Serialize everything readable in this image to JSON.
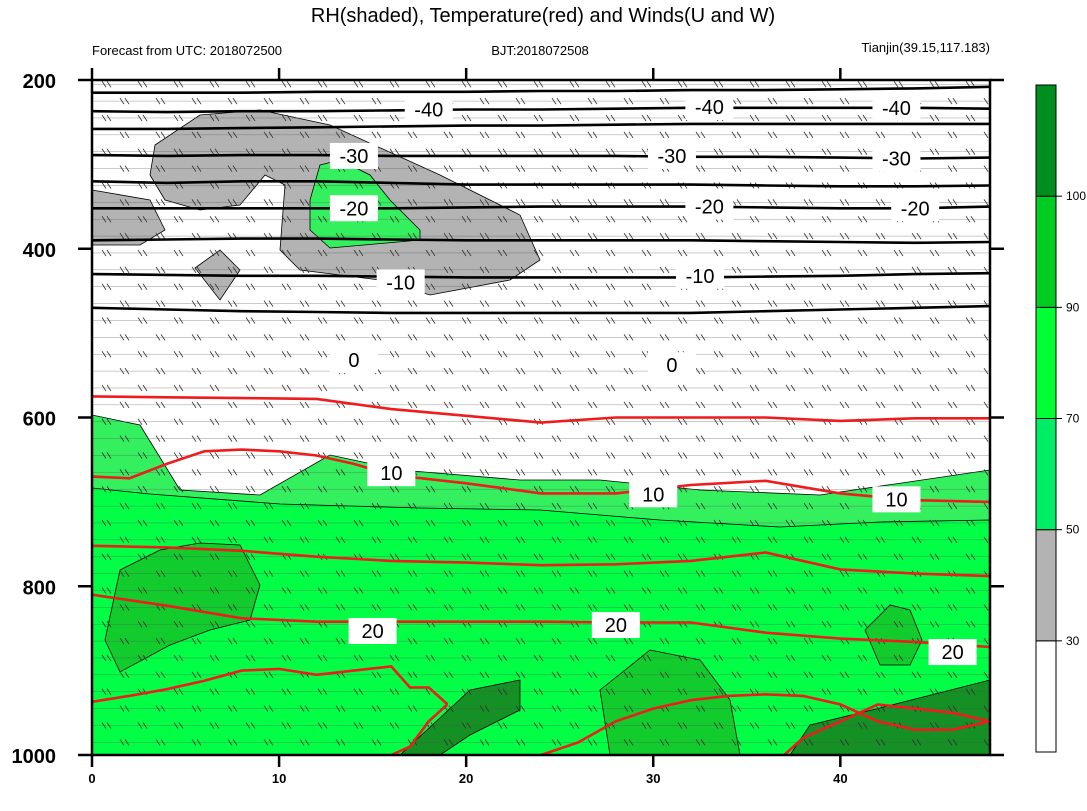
{
  "chart_data": {
    "type": "contour",
    "title": "RH(shaded), Temperature(red) and Winds(U and W)",
    "subtitle_left": "Forecast from UTC: 2018072500",
    "subtitle_center": "BJT:2018072508",
    "subtitle_right": "Tianjin(39.15,117.183)",
    "x_range": [
      0,
      48
    ],
    "x_ticks": [
      0,
      10,
      20,
      30,
      40
    ],
    "y_range": [
      1000,
      200
    ],
    "y_ticks": [
      200,
      400,
      600,
      800,
      1000
    ],
    "colorbar": {
      "levels": [
        "30",
        "50",
        "70",
        "90",
        "100"
      ],
      "colors": [
        "#ffffff",
        "#b3b3b3",
        "#00ee66",
        "#00ff33",
        "#00cc22",
        "#008f1f"
      ]
    },
    "colors": {
      "temperature": "#ee1c1c",
      "contour": "#000000",
      "rh_gray": "#b3b3b3",
      "rh_light": "#34ef5e",
      "rh_green": "#00ff45",
      "rh_mid": "#11cc2c",
      "rh_dark": "#149024"
    },
    "temperature_labels": [
      {
        "text": "-40",
        "x": 18.0,
        "p": 235
      },
      {
        "text": "-40",
        "x": 33.0,
        "p": 232
      },
      {
        "text": "-40",
        "x": 43.0,
        "p": 233
      },
      {
        "text": "-30",
        "x": 14.0,
        "p": 290
      },
      {
        "text": "-30",
        "x": 31.0,
        "p": 290
      },
      {
        "text": "-30",
        "x": 43.0,
        "p": 293
      },
      {
        "text": "-20",
        "x": 14.0,
        "p": 352
      },
      {
        "text": "-20",
        "x": 33.0,
        "p": 350
      },
      {
        "text": "-20",
        "x": 44.0,
        "p": 352
      },
      {
        "text": "-10",
        "x": 16.5,
        "p": 440
      },
      {
        "text": "-10",
        "x": 32.5,
        "p": 432
      },
      {
        "text": "0",
        "x": 14.0,
        "p": 532
      },
      {
        "text": "0",
        "x": 31.0,
        "p": 538
      },
      {
        "text": "10",
        "x": 16.0,
        "p": 666
      },
      {
        "text": "10",
        "x": 30.0,
        "p": 691
      },
      {
        "text": "10",
        "x": 43.0,
        "p": 697
      },
      {
        "text": "20",
        "x": 15.0,
        "p": 853
      },
      {
        "text": "20",
        "x": 28.0,
        "p": 846
      },
      {
        "text": "20",
        "x": 46.0,
        "p": 878
      }
    ],
    "temperature_lines": [
      {
        "x": [
          0,
          4,
          8,
          12,
          16,
          20,
          24,
          28,
          32,
          36,
          40,
          44,
          48
        ],
        "p": [
          215,
          215,
          215,
          214,
          214,
          214,
          213,
          213,
          212,
          212,
          211,
          210,
          208
        ]
      },
      {
        "x": [
          0,
          4,
          8,
          12,
          16,
          20,
          24,
          28,
          32,
          36,
          40,
          44,
          48
        ],
        "p": [
          237,
          238,
          237,
          237,
          236,
          235,
          235,
          234,
          233,
          233,
          233,
          233,
          234
        ]
      },
      {
        "x": [
          0,
          4,
          8,
          12,
          16,
          20,
          24,
          28,
          32,
          36,
          40,
          44,
          48
        ],
        "p": [
          258,
          258,
          257,
          256,
          255,
          254,
          254,
          253,
          252,
          252,
          252,
          252,
          252
        ]
      },
      {
        "x": [
          0,
          4,
          8,
          12,
          16,
          20,
          24,
          28,
          32,
          36,
          40,
          44,
          48
        ],
        "p": [
          289,
          290,
          289,
          289,
          290,
          290,
          290,
          290,
          291,
          291,
          292,
          293,
          292
        ]
      },
      {
        "x": [
          0,
          4,
          8,
          12,
          16,
          20,
          24,
          28,
          32,
          36,
          40,
          44,
          48
        ],
        "p": [
          320,
          322,
          320,
          320,
          322,
          324,
          324,
          324,
          324,
          325,
          326,
          326,
          325
        ]
      },
      {
        "x": [
          0,
          4,
          8,
          12,
          16,
          20,
          24,
          28,
          32,
          36,
          40,
          44,
          48
        ],
        "p": [
          352,
          352,
          352,
          352,
          352,
          351,
          350,
          350,
          350,
          351,
          352,
          352,
          350
        ]
      },
      {
        "x": [
          0,
          4,
          8,
          12,
          16,
          20,
          24,
          28,
          32,
          36,
          40,
          44,
          48
        ],
        "p": [
          390,
          389,
          388,
          388,
          389,
          390,
          390,
          390,
          390,
          391,
          392,
          393,
          392
        ]
      },
      {
        "x": [
          0,
          4,
          8,
          12,
          16,
          20,
          24,
          28,
          32,
          36,
          40,
          44,
          48
        ],
        "p": [
          430,
          431,
          432,
          432,
          433,
          434,
          434,
          434,
          434,
          433,
          432,
          430,
          429
        ]
      },
      {
        "x": [
          0,
          4,
          8,
          12,
          16,
          20,
          24,
          28,
          32,
          36,
          40,
          44,
          48
        ],
        "p": [
          470,
          472,
          474,
          475,
          476,
          476,
          476,
          476,
          476,
          474,
          472,
          470,
          468
        ]
      }
    ],
    "temperature_red_lines": [
      {
        "x": [
          0,
          4,
          8,
          12,
          16,
          20,
          24,
          28,
          32,
          36,
          40,
          44,
          48
        ],
        "p": [
          575,
          576,
          577,
          578,
          590,
          598,
          606,
          600,
          600,
          600,
          604,
          601,
          601
        ]
      },
      {
        "x": [
          0,
          2,
          4,
          6,
          8,
          10,
          12,
          14,
          16,
          20,
          24,
          28,
          32,
          36,
          40,
          44,
          48
        ],
        "p": [
          670,
          672,
          655,
          640,
          638,
          640,
          645,
          655,
          668,
          678,
          690,
          690,
          680,
          675,
          690,
          698,
          700
        ]
      },
      {
        "x": [
          0,
          4,
          8,
          12,
          16,
          20,
          24,
          28,
          32,
          36,
          40,
          44,
          48
        ],
        "p": [
          752,
          754,
          758,
          765,
          770,
          772,
          775,
          774,
          770,
          760,
          780,
          785,
          788
        ]
      },
      {
        "x": [
          0,
          4,
          8,
          12,
          16,
          20,
          24,
          28,
          32,
          36,
          40,
          44,
          48
        ],
        "p": [
          810,
          823,
          838,
          842,
          842,
          842,
          842,
          843,
          843,
          855,
          862,
          866,
          872
        ]
      },
      {
        "x": [
          0,
          2,
          4,
          6,
          8,
          10,
          12,
          14,
          16,
          17,
          18,
          19
        ],
        "p": [
          937,
          930,
          922,
          912,
          900,
          898,
          905,
          900,
          895,
          920,
          920,
          940
        ]
      },
      {
        "x": [
          19,
          18,
          17,
          16
        ],
        "p": [
          940,
          960,
          990,
          1000
        ]
      }
    ],
    "temperature_red_loop": {
      "x": [
        24,
        26,
        28,
        30,
        32,
        34,
        36,
        38,
        40,
        41,
        42,
        44,
        46,
        48,
        46,
        44,
        42,
        40,
        38,
        37
      ],
      "p": [
        1000,
        985,
        960,
        945,
        935,
        930,
        928,
        930,
        940,
        950,
        960,
        970,
        970,
        960,
        950,
        945,
        940,
        960,
        980,
        1000
      ]
    },
    "wind_rows": [
      205,
      225,
      245,
      265,
      285,
      305,
      325,
      345,
      365,
      385,
      405,
      425,
      445,
      465,
      485,
      505,
      525,
      545,
      565,
      585,
      605,
      625,
      645,
      665,
      685,
      705,
      725,
      745,
      765,
      785,
      805,
      825,
      845,
      865,
      885,
      905,
      925,
      945,
      965,
      985
    ]
  }
}
